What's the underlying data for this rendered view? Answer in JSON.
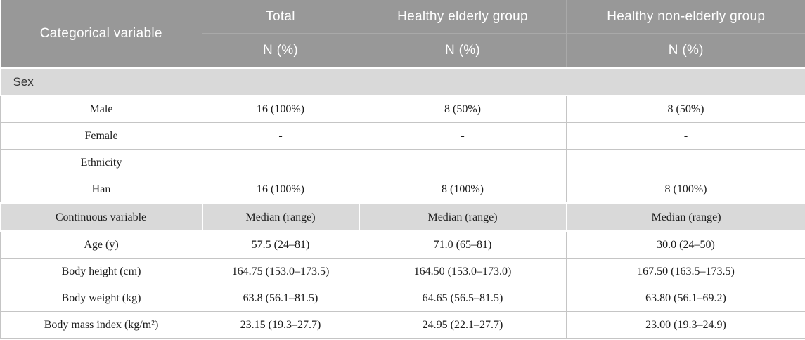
{
  "colors": {
    "header_bg": "#989898",
    "header_divider": "#a9a9a9",
    "header_text": "#ffffff",
    "band_bg": "#d9d9d9",
    "cell_border": "#c5c5c5",
    "body_text": "#1b1b1b",
    "section_text": "#333333"
  },
  "table": {
    "header": {
      "col1": "Categorical variable",
      "groups": [
        {
          "label": "Total",
          "sub": "N (%)"
        },
        {
          "label": "Healthy elderly group",
          "sub": "N (%)"
        },
        {
          "label": "Healthy non-elderly group",
          "sub": "N (%)"
        }
      ]
    },
    "sex_section_label": "Sex",
    "categorical_rows": [
      {
        "label": "Male",
        "values": [
          "16 (100%)",
          "8 (50%)",
          "8 (50%)"
        ]
      },
      {
        "label": "Female",
        "values": [
          "-",
          "-",
          "-"
        ]
      },
      {
        "label": "Ethnicity",
        "values": [
          "",
          "",
          ""
        ]
      },
      {
        "label": "Han",
        "values": [
          "16 (100%)",
          "8 (100%)",
          "8 (100%)"
        ]
      }
    ],
    "continuous_header": {
      "label": "Continuous variable",
      "values": [
        "Median (range)",
        "Median (range)",
        "Median (range)"
      ]
    },
    "continuous_rows": [
      {
        "label": "Age (y)",
        "values": [
          "57.5 (24–81)",
          "71.0 (65–81)",
          "30.0 (24–50)"
        ]
      },
      {
        "label": "Body height (cm)",
        "values": [
          "164.75 (153.0–173.5)",
          "164.50 (153.0–173.0)",
          "167.50 (163.5–173.5)"
        ]
      },
      {
        "label": "Body weight (kg)",
        "values": [
          "63.8 (56.1–81.5)",
          "64.65 (56.5–81.5)",
          "63.80 (56.1–69.2)"
        ]
      },
      {
        "label": "Body mass index (kg/m²)",
        "values": [
          "23.15 (19.3–27.7)",
          "24.95 (22.1–27.7)",
          "23.00 (19.3–24.9)"
        ]
      }
    ]
  }
}
